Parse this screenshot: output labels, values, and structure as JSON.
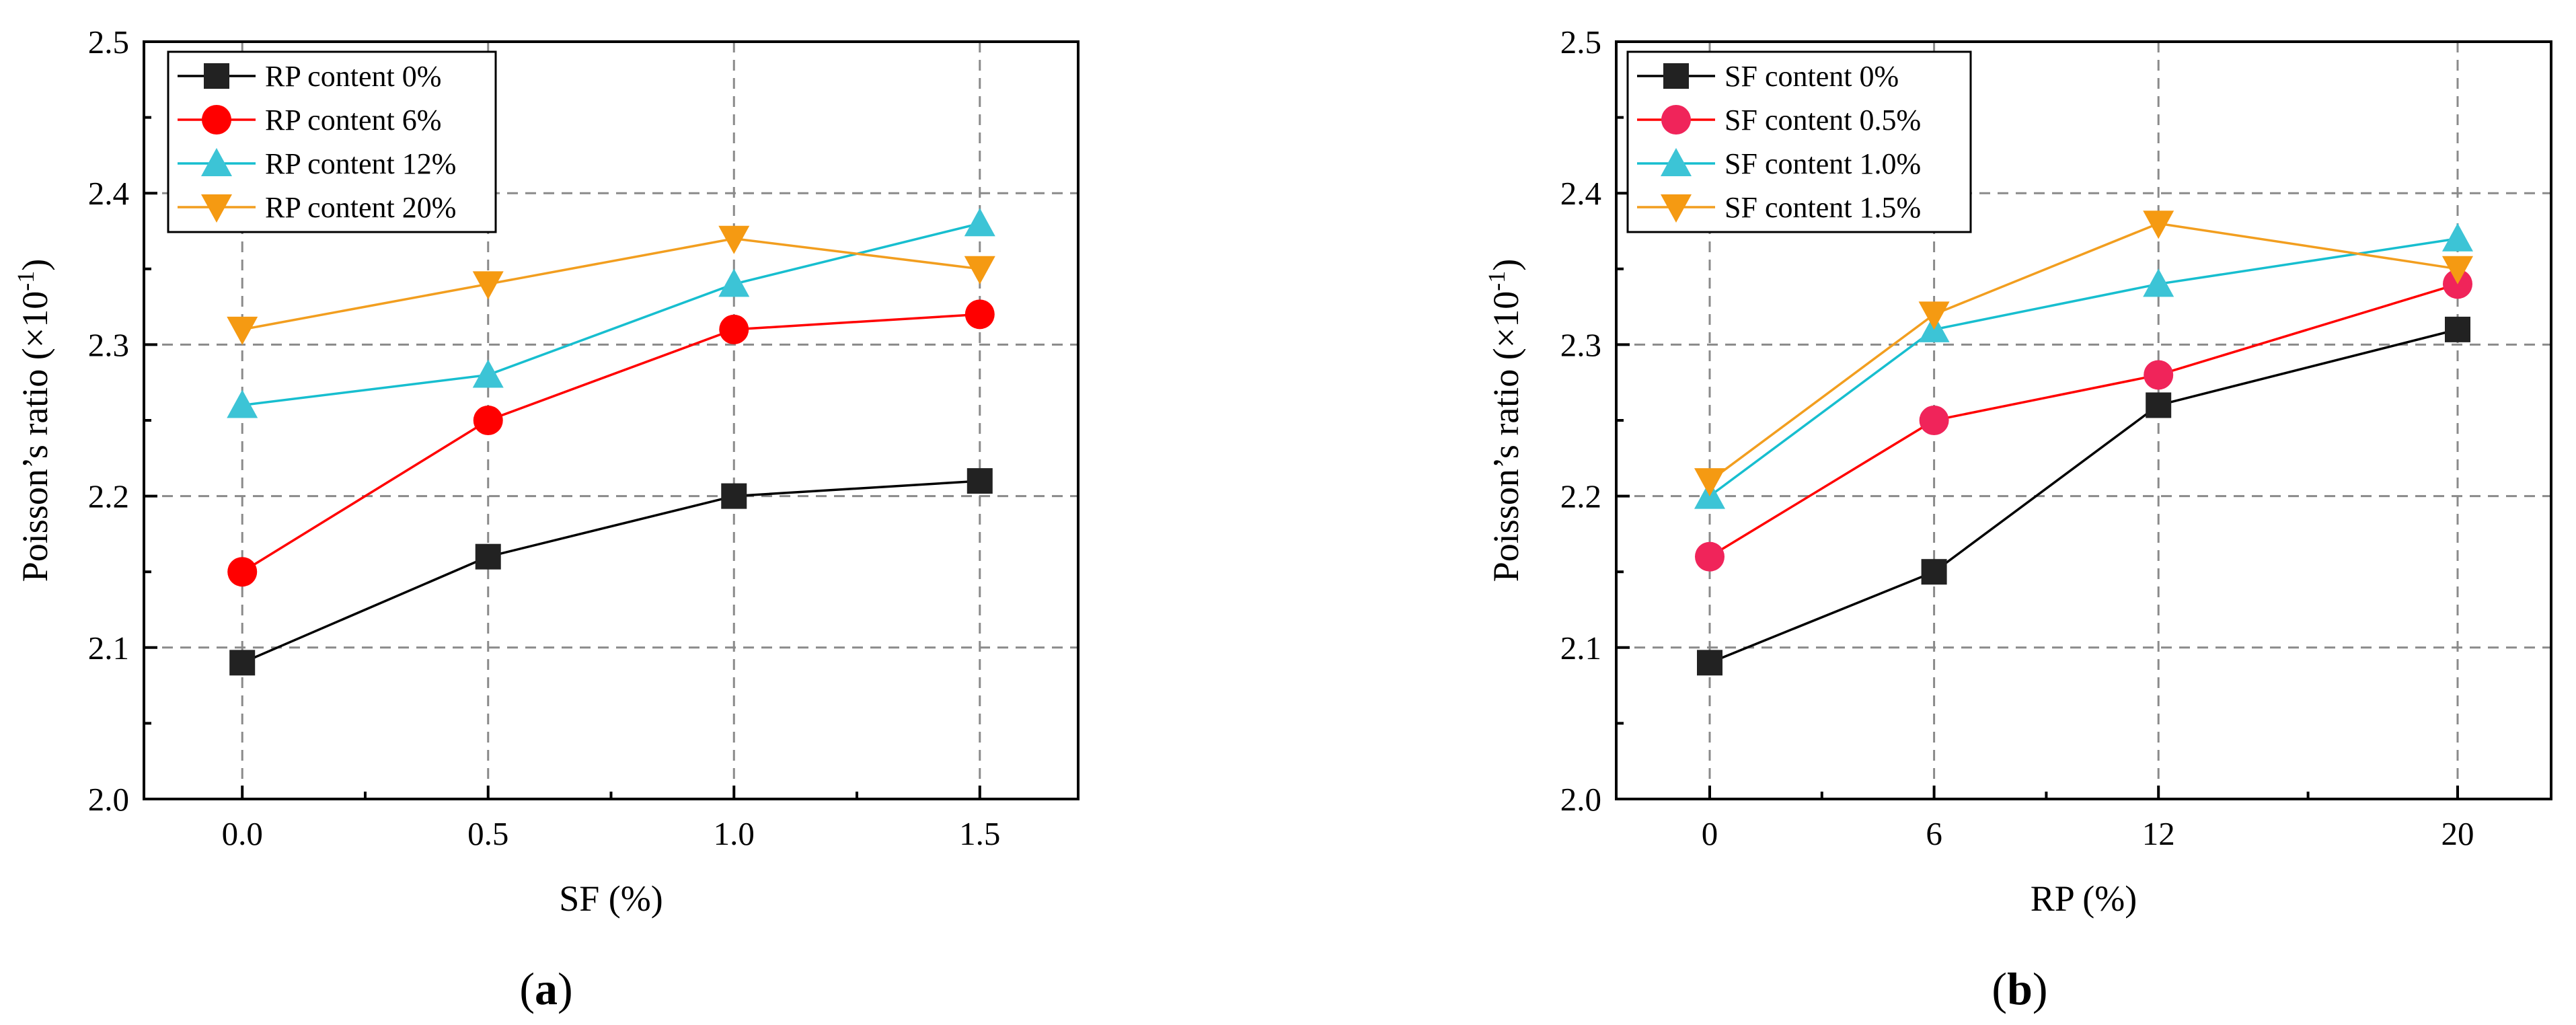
{
  "chart_data": [
    {
      "type": "line",
      "panel_label": "(a)",
      "panel_letter": "a",
      "xlabel": "SF (%)",
      "ylabel": "Poisson’s ratio (×10",
      "ylabel_exp": "-1",
      "ylabel_close": ")",
      "x": [
        0.0,
        0.5,
        1.0,
        1.5
      ],
      "x_tick_labels": [
        "0.0",
        "0.5",
        "1.0",
        "1.5"
      ],
      "xlim": [
        -0.2,
        1.7
      ],
      "ylim": [
        2.0,
        2.5
      ],
      "y_ticks": [
        2.0,
        2.1,
        2.2,
        2.3,
        2.4,
        2.5
      ],
      "y_tick_labels": [
        "2.0",
        "2.1",
        "2.2",
        "2.3",
        "2.4",
        "2.5"
      ],
      "grid": true,
      "legend_position": "top-left",
      "series": [
        {
          "name": "RP content 0%",
          "marker": "square",
          "color": "#000000",
          "fill": "#222222",
          "values": [
            2.09,
            2.16,
            2.2,
            2.21
          ]
        },
        {
          "name": "RP content 6%",
          "marker": "circle",
          "color": "#ff0000",
          "fill": "#ff0000",
          "values": [
            2.15,
            2.25,
            2.31,
            2.32
          ]
        },
        {
          "name": "RP content 12%",
          "marker": "triangle-up",
          "color": "#17becf",
          "fill": "#3cc4d6",
          "values": [
            2.26,
            2.28,
            2.34,
            2.38
          ]
        },
        {
          "name": "RP content 20%",
          "marker": "triangle-down",
          "color": "#f29e1f",
          "fill": "#f59a12",
          "values": [
            2.31,
            2.34,
            2.37,
            2.35
          ]
        }
      ]
    },
    {
      "type": "line",
      "panel_label": "(b)",
      "panel_letter": "b",
      "xlabel": "RP (%)",
      "ylabel": "Poisson’s ratio (×10",
      "ylabel_exp": "-1",
      "ylabel_close": ")",
      "x": [
        0,
        6,
        12,
        20
      ],
      "x_tick_labels": [
        "0",
        "6",
        "12",
        "20"
      ],
      "xlim": [
        -2.5,
        22.5
      ],
      "ylim": [
        2.0,
        2.5
      ],
      "y_ticks": [
        2.0,
        2.1,
        2.2,
        2.3,
        2.4,
        2.5
      ],
      "y_tick_labels": [
        "2.0",
        "2.1",
        "2.2",
        "2.3",
        "2.4",
        "2.5"
      ],
      "grid": true,
      "legend_position": "top-left",
      "series": [
        {
          "name": "SF content 0%",
          "marker": "square",
          "color": "#000000",
          "fill": "#222222",
          "values": [
            2.09,
            2.15,
            2.26,
            2.31
          ]
        },
        {
          "name": "SF content 0.5%",
          "marker": "circle",
          "color": "#ff0000",
          "fill": "#f0245a",
          "values": [
            2.16,
            2.25,
            2.28,
            2.34
          ]
        },
        {
          "name": "SF content 1.0%",
          "marker": "triangle-up",
          "color": "#17becf",
          "fill": "#3cc4d6",
          "values": [
            2.2,
            2.31,
            2.34,
            2.37
          ]
        },
        {
          "name": "SF content 1.5%",
          "marker": "triangle-down",
          "color": "#f29e1f",
          "fill": "#f59a12",
          "values": [
            2.21,
            2.32,
            2.38,
            2.35
          ]
        }
      ]
    }
  ]
}
